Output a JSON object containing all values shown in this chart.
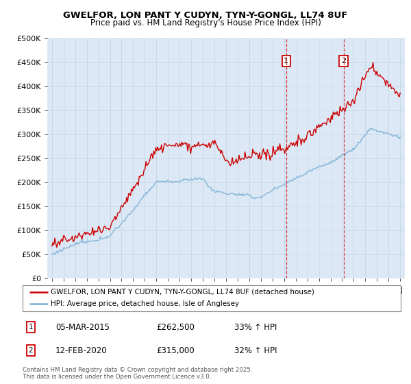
{
  "title": "GWELFOR, LON PANT Y CUDYN, TYN-Y-GONGL, LL74 8UF",
  "subtitle": "Price paid vs. HM Land Registry's House Price Index (HPI)",
  "legend_line1": "GWELFOR, LON PANT Y CUDYN, TYN-Y-GONGL, LL74 8UF (detached house)",
  "legend_line2": "HPI: Average price, detached house, Isle of Anglesey",
  "footer": "Contains HM Land Registry data © Crown copyright and database right 2025.\nThis data is licensed under the Open Government Licence v3.0.",
  "annotation1_date": "05-MAR-2015",
  "annotation1_price": "£262,500",
  "annotation1_hpi": "33% ↑ HPI",
  "annotation2_date": "12-FEB-2020",
  "annotation2_price": "£315,000",
  "annotation2_hpi": "32% ↑ HPI",
  "ylim": [
    0,
    500000
  ],
  "yticks": [
    0,
    50000,
    100000,
    150000,
    200000,
    250000,
    300000,
    350000,
    400000,
    450000,
    500000
  ],
  "ytick_labels": [
    "£0",
    "£50K",
    "£100K",
    "£150K",
    "£200K",
    "£250K",
    "£300K",
    "£350K",
    "£400K",
    "£450K",
    "£500K"
  ],
  "red_color": "#cc0000",
  "blue_color": "#7bafd4",
  "shade_color": "#dce8f5",
  "vline_color": "#cc0000",
  "background_color": "#dce8f5",
  "plot_bg_color": "#ffffff",
  "grid_color": "#c8d8e8",
  "start_year": 1995,
  "end_year": 2025,
  "marker1_year": 2015.18,
  "marker2_year": 2020.12
}
